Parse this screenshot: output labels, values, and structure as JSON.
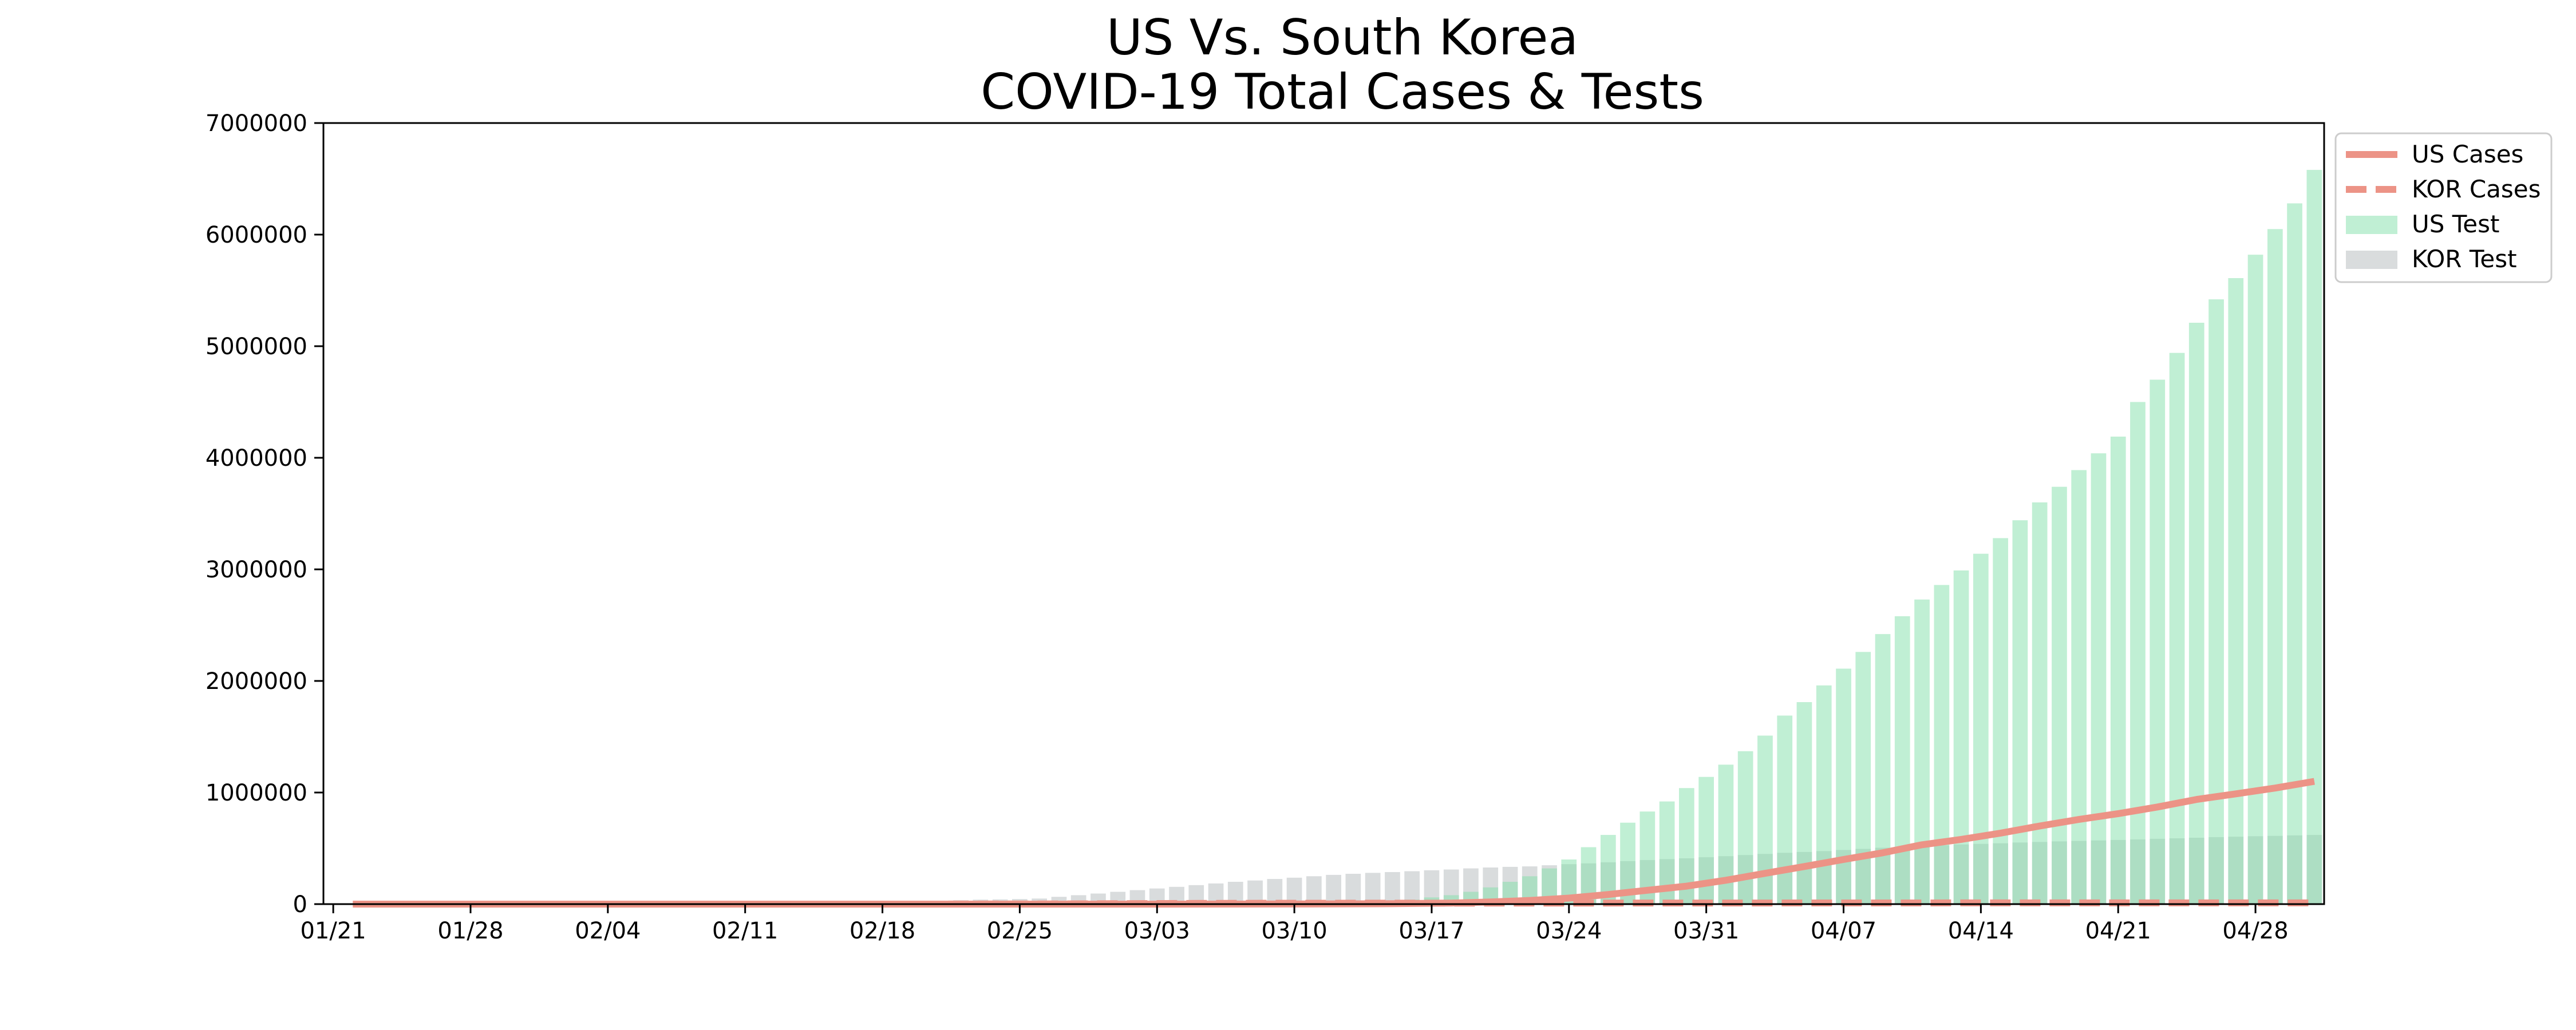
{
  "chart_data": {
    "type": "bar",
    "title_lines": [
      "US Vs. South Korea",
      "COVID-19 Total Cases & Tests"
    ],
    "xlabel": "",
    "ylabel": "",
    "x_start": "2020-01-21",
    "x_end": "2020-05-01",
    "ylim": [
      0,
      7000000
    ],
    "y_ticks": [
      0,
      1000000,
      2000000,
      3000000,
      4000000,
      5000000,
      6000000,
      7000000
    ],
    "x_tick_labels": [
      "01/21",
      "01/28",
      "02/04",
      "02/11",
      "02/18",
      "02/25",
      "03/03",
      "03/10",
      "03/17",
      "03/24",
      "03/31",
      "04/07",
      "04/14",
      "04/21",
      "04/28"
    ],
    "grid": false,
    "legend_position": "outside-top-right",
    "legend": [
      "US Cases",
      "KOR Cases",
      "US Test",
      "KOR Test"
    ],
    "series": [
      {
        "name": "US Test",
        "kind": "bar",
        "color": "#82e0aa",
        "points": [
          [
            "2020-03-04",
            2000
          ],
          [
            "2020-03-06",
            4000
          ],
          [
            "2020-03-08",
            6000
          ],
          [
            "2020-03-10",
            9000
          ],
          [
            "2020-03-12",
            13000
          ],
          [
            "2020-03-14",
            20000
          ],
          [
            "2020-03-16",
            40000
          ],
          [
            "2020-03-17",
            60000
          ],
          [
            "2020-03-18",
            80000
          ],
          [
            "2020-03-19",
            110000
          ],
          [
            "2020-03-20",
            150000
          ],
          [
            "2020-03-21",
            200000
          ],
          [
            "2020-03-22",
            250000
          ],
          [
            "2020-03-23",
            320000
          ],
          [
            "2020-03-24",
            400000
          ],
          [
            "2020-03-25",
            510000
          ],
          [
            "2020-03-26",
            620000
          ],
          [
            "2020-03-27",
            730000
          ],
          [
            "2020-03-28",
            830000
          ],
          [
            "2020-03-29",
            920000
          ],
          [
            "2020-03-30",
            1040000
          ],
          [
            "2020-03-31",
            1140000
          ],
          [
            "2020-04-01",
            1250000
          ],
          [
            "2020-04-02",
            1370000
          ],
          [
            "2020-04-03",
            1510000
          ],
          [
            "2020-04-04",
            1690000
          ],
          [
            "2020-04-05",
            1810000
          ],
          [
            "2020-04-06",
            1960000
          ],
          [
            "2020-04-07",
            2110000
          ],
          [
            "2020-04-08",
            2260000
          ],
          [
            "2020-04-09",
            2420000
          ],
          [
            "2020-04-10",
            2580000
          ],
          [
            "2020-04-11",
            2730000
          ],
          [
            "2020-04-12",
            2860000
          ],
          [
            "2020-04-13",
            2990000
          ],
          [
            "2020-04-14",
            3140000
          ],
          [
            "2020-04-15",
            3280000
          ],
          [
            "2020-04-16",
            3440000
          ],
          [
            "2020-04-17",
            3600000
          ],
          [
            "2020-04-18",
            3740000
          ],
          [
            "2020-04-19",
            3890000
          ],
          [
            "2020-04-20",
            4040000
          ],
          [
            "2020-04-21",
            4190000
          ],
          [
            "2020-04-22",
            4500000
          ],
          [
            "2020-04-23",
            4700000
          ],
          [
            "2020-04-24",
            4940000
          ],
          [
            "2020-04-25",
            5210000
          ],
          [
            "2020-04-26",
            5420000
          ],
          [
            "2020-04-27",
            5610000
          ],
          [
            "2020-04-28",
            5820000
          ],
          [
            "2020-04-29",
            6050000
          ],
          [
            "2020-04-30",
            6280000
          ],
          [
            "2020-05-01",
            6580000
          ]
        ]
      },
      {
        "name": "KOR Test",
        "kind": "bar",
        "color": "#bfc4c7",
        "points": [
          [
            "2020-01-21",
            1000
          ],
          [
            "2020-01-22",
            1500
          ],
          [
            "2020-01-23",
            2000
          ],
          [
            "2020-01-24",
            2500
          ],
          [
            "2020-01-25",
            3000
          ],
          [
            "2020-01-26",
            3500
          ],
          [
            "2020-01-27",
            4000
          ],
          [
            "2020-01-28",
            4500
          ],
          [
            "2020-01-29",
            5000
          ],
          [
            "2020-01-30",
            5500
          ],
          [
            "2020-01-31",
            6000
          ],
          [
            "2020-02-01",
            6500
          ],
          [
            "2020-02-02",
            7000
          ],
          [
            "2020-02-03",
            7500
          ],
          [
            "2020-02-04",
            8000
          ],
          [
            "2020-02-05",
            8500
          ],
          [
            "2020-02-06",
            9000
          ],
          [
            "2020-02-07",
            9500
          ],
          [
            "2020-02-08",
            10000
          ],
          [
            "2020-02-09",
            10500
          ],
          [
            "2020-02-10",
            11000
          ],
          [
            "2020-02-11",
            11500
          ],
          [
            "2020-02-12",
            12000
          ],
          [
            "2020-02-13",
            12500
          ],
          [
            "2020-02-14",
            13000
          ],
          [
            "2020-02-15",
            13500
          ],
          [
            "2020-02-16",
            14000
          ],
          [
            "2020-02-17",
            15000
          ],
          [
            "2020-02-18",
            17000
          ],
          [
            "2020-02-19",
            20000
          ],
          [
            "2020-02-20",
            25000
          ],
          [
            "2020-02-21",
            30000
          ],
          [
            "2020-02-22",
            35000
          ],
          [
            "2020-02-23",
            40000
          ],
          [
            "2020-02-24",
            42000
          ],
          [
            "2020-02-25",
            45000
          ],
          [
            "2020-02-26",
            50000
          ],
          [
            "2020-02-27",
            65000
          ],
          [
            "2020-02-28",
            80000
          ],
          [
            "2020-02-29",
            95000
          ],
          [
            "2020-03-01",
            110000
          ],
          [
            "2020-03-02",
            125000
          ],
          [
            "2020-03-03",
            140000
          ],
          [
            "2020-03-04",
            155000
          ],
          [
            "2020-03-05",
            170000
          ],
          [
            "2020-03-06",
            185000
          ],
          [
            "2020-03-07",
            200000
          ],
          [
            "2020-03-08",
            212000
          ],
          [
            "2020-03-09",
            225000
          ],
          [
            "2020-03-10",
            237000
          ],
          [
            "2020-03-11",
            250000
          ],
          [
            "2020-03-12",
            262000
          ],
          [
            "2020-03-13",
            272000
          ],
          [
            "2020-03-14",
            280000
          ],
          [
            "2020-03-15",
            287000
          ],
          [
            "2020-03-16",
            295000
          ],
          [
            "2020-03-17",
            303000
          ],
          [
            "2020-03-18",
            310000
          ],
          [
            "2020-03-19",
            320000
          ],
          [
            "2020-03-20",
            328000
          ],
          [
            "2020-03-21",
            334000
          ],
          [
            "2020-03-22",
            338000
          ],
          [
            "2020-03-23",
            348000
          ],
          [
            "2020-03-24",
            358000
          ],
          [
            "2020-03-25",
            365000
          ],
          [
            "2020-03-26",
            375000
          ],
          [
            "2020-03-27",
            385000
          ],
          [
            "2020-03-28",
            395000
          ],
          [
            "2020-03-29",
            403000
          ],
          [
            "2020-03-30",
            410000
          ],
          [
            "2020-03-31",
            420000
          ],
          [
            "2020-04-01",
            430000
          ],
          [
            "2020-04-02",
            440000
          ],
          [
            "2020-04-03",
            450000
          ],
          [
            "2020-04-04",
            460000
          ],
          [
            "2020-04-05",
            467000
          ],
          [
            "2020-04-06",
            475000
          ],
          [
            "2020-04-07",
            485000
          ],
          [
            "2020-04-08",
            495000
          ],
          [
            "2020-04-09",
            505000
          ],
          [
            "2020-04-10",
            512000
          ],
          [
            "2020-04-11",
            520000
          ],
          [
            "2020-04-12",
            527000
          ],
          [
            "2020-04-13",
            535000
          ],
          [
            "2020-04-14",
            540000
          ],
          [
            "2020-04-15",
            545000
          ],
          [
            "2020-04-16",
            552000
          ],
          [
            "2020-04-17",
            557000
          ],
          [
            "2020-04-18",
            562000
          ],
          [
            "2020-04-19",
            566000
          ],
          [
            "2020-04-20",
            571000
          ],
          [
            "2020-04-21",
            575000
          ],
          [
            "2020-04-22",
            580000
          ],
          [
            "2020-04-23",
            585000
          ],
          [
            "2020-04-24",
            590000
          ],
          [
            "2020-04-25",
            595000
          ],
          [
            "2020-04-26",
            600000
          ],
          [
            "2020-04-27",
            604000
          ],
          [
            "2020-04-28",
            608000
          ],
          [
            "2020-04-29",
            612000
          ],
          [
            "2020-04-30",
            616000
          ],
          [
            "2020-05-01",
            620000
          ]
        ]
      },
      {
        "name": "US Cases",
        "kind": "line",
        "color": "#ec9386",
        "dash": "solid",
        "points": [
          [
            "2020-01-22",
            1
          ],
          [
            "2020-02-15",
            15
          ],
          [
            "2020-03-01",
            75
          ],
          [
            "2020-03-10",
            1000
          ],
          [
            "2020-03-15",
            3500
          ],
          [
            "2020-03-18",
            9000
          ],
          [
            "2020-03-20",
            19000
          ],
          [
            "2020-03-22",
            33000
          ],
          [
            "2020-03-24",
            54000
          ],
          [
            "2020-03-26",
            86000
          ],
          [
            "2020-03-28",
            124000
          ],
          [
            "2020-03-30",
            161000
          ],
          [
            "2020-04-01",
            214000
          ],
          [
            "2020-04-03",
            276000
          ],
          [
            "2020-04-05",
            337000
          ],
          [
            "2020-04-07",
            400000
          ],
          [
            "2020-04-09",
            460000
          ],
          [
            "2020-04-11",
            532000
          ],
          [
            "2020-04-13",
            580000
          ],
          [
            "2020-04-15",
            636000
          ],
          [
            "2020-04-17",
            700000
          ],
          [
            "2020-04-19",
            759000
          ],
          [
            "2020-04-21",
            811000
          ],
          [
            "2020-04-23",
            870000
          ],
          [
            "2020-04-25",
            938000
          ],
          [
            "2020-04-27",
            988000
          ],
          [
            "2020-04-29",
            1040000
          ],
          [
            "2020-05-01",
            1100000
          ]
        ]
      },
      {
        "name": "KOR Cases",
        "kind": "line",
        "color": "#ec9386",
        "dash": "dashed",
        "points": [
          [
            "2020-01-22",
            1
          ],
          [
            "2020-02-18",
            31
          ],
          [
            "2020-02-20",
            104
          ],
          [
            "2020-02-22",
            433
          ],
          [
            "2020-02-24",
            833
          ],
          [
            "2020-02-26",
            1261
          ],
          [
            "2020-02-28",
            2337
          ],
          [
            "2020-03-01",
            3736
          ],
          [
            "2020-03-03",
            5186
          ],
          [
            "2020-03-05",
            6088
          ],
          [
            "2020-03-07",
            7134
          ],
          [
            "2020-03-10",
            7513
          ],
          [
            "2020-03-15",
            8162
          ],
          [
            "2020-03-20",
            8652
          ],
          [
            "2020-03-25",
            9137
          ],
          [
            "2020-04-01",
            9887
          ],
          [
            "2020-04-08",
            10384
          ],
          [
            "2020-04-15",
            10591
          ],
          [
            "2020-04-22",
            10694
          ],
          [
            "2020-05-01",
            10774
          ]
        ]
      }
    ]
  }
}
